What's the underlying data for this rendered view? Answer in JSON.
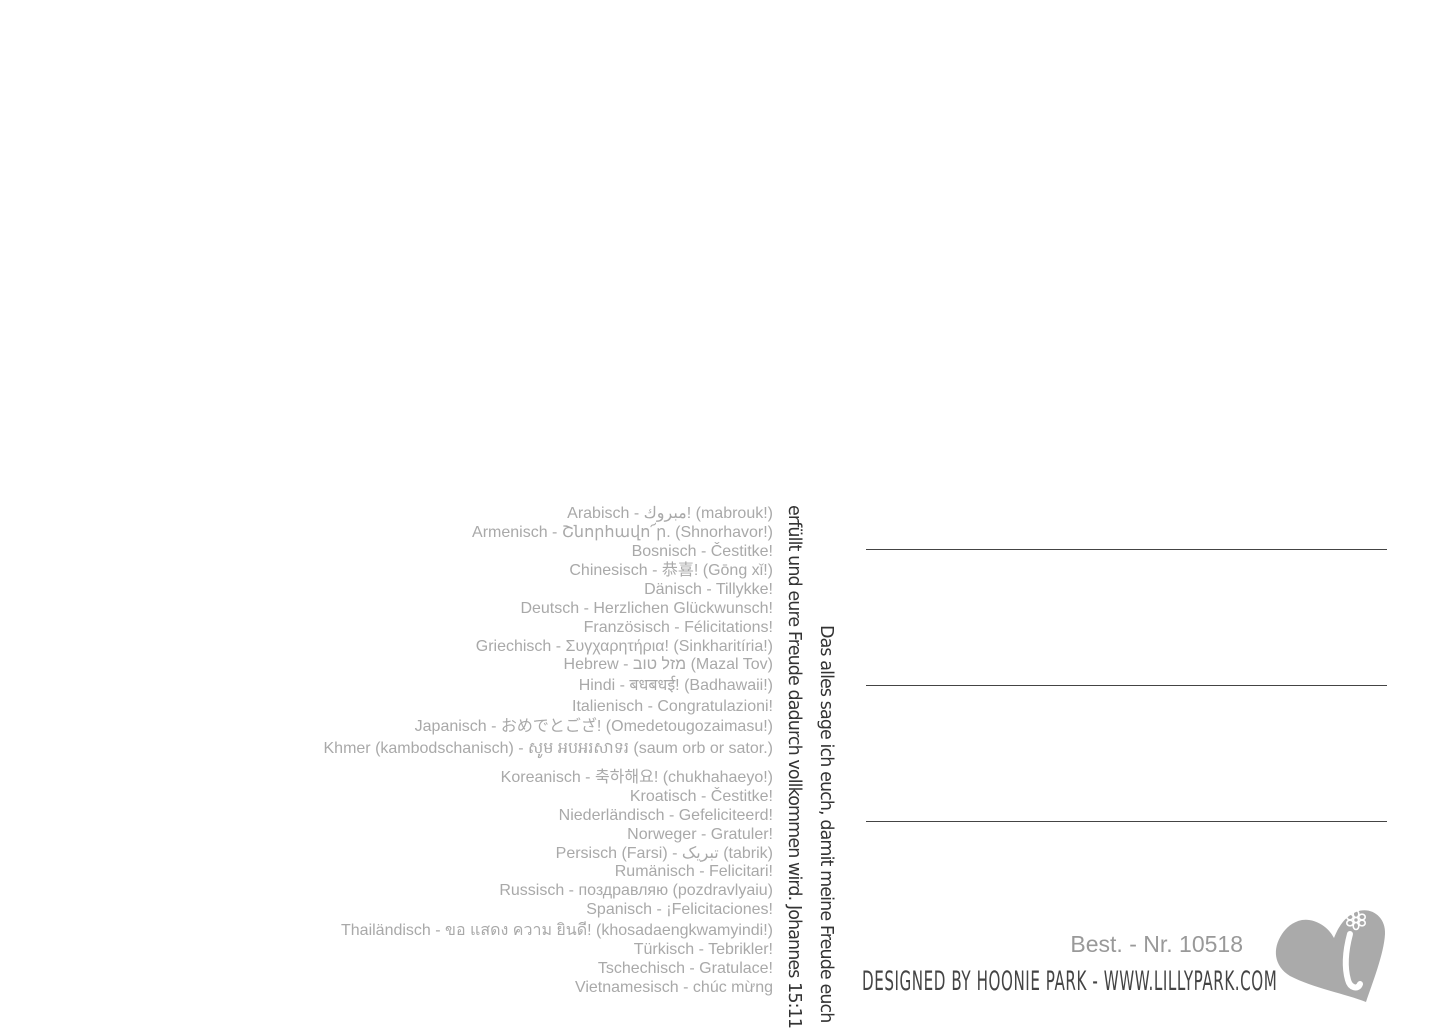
{
  "languages": [
    "Arabisch - مبروك! (mabrouk!)",
    "Armenisch - Շնորհավո՜ր. (Shnorhavor!)",
    "Bosnisch - Čestitke!",
    "Chinesisch - 恭喜! (Gōng xǐ!)",
    "Dänisch - Tillykke!",
    "Deutsch - Herzlichen Glückwunsch!",
    "Französisch - Félicitations!",
    "Griechisch - Συγχαρητήρια! (Sinkharitíria!)",
    "Hebrew - מזל טוב (Mazal Tov)",
    "Hindi - बधबधई! (Badhawaii!)",
    "Italienisch - Congratulazioni!",
    "Japanisch - おめでとござ! (Omedetougozaimasu!)",
    "Khmer (kambodschanisch) - សូម អបអរសាទរ (saum orb or sator.)",
    "Koreanisch - 축하해요! (chukhahaeyo!)",
    "Kroatisch - Čestitke!",
    "Niederländisch - Gefeliciteerd!",
    "Norweger - Gratuler!",
    "Persisch (Farsi) - تبریک (tabrik)",
    "Rumänisch - Felicitari!",
    "Russisch - поздравляю (pozdravlyaiu)",
    "Spanisch - ¡Felicitaciones!",
    "Thailändisch - ขอ แสดง ความ ยินดี! (khosadaengkwamyindi!)",
    "Türkisch - Tebrikler!",
    "Tschechisch - Gratulace!",
    "Vietnamesisch - chúc mừng"
  ],
  "verse": {
    "line1": "Das alles sage ich euch, damit meine Freude euch",
    "line2": "erfüllt und eure Freude dadurch vollkommen wird. Johannes 15:11"
  },
  "order_number": "Best. - Nr. 10518",
  "designer_credit": "DESIGNED BY HOONIE PARK - WWW.LILLYPARK.COM",
  "logo": {
    "icon": "heart-l-flower-logo",
    "color": "#aaaaaa"
  },
  "colors": {
    "language_text": "#a9a9a9",
    "address_lines": "#444444"
  }
}
